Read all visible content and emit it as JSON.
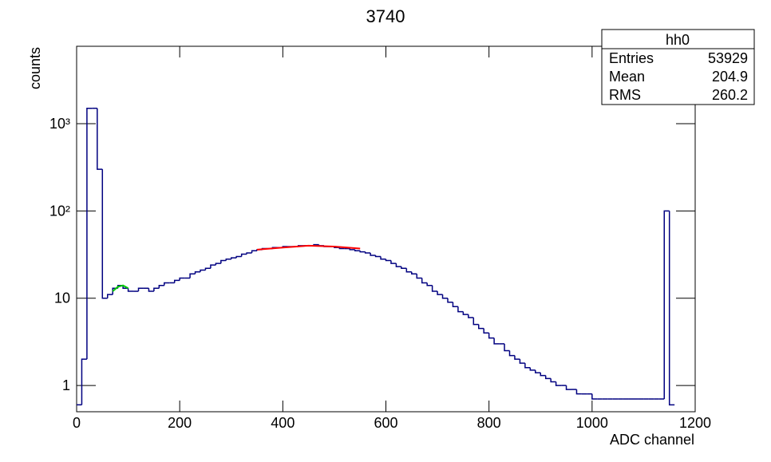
{
  "chart_data": {
    "type": "histogram",
    "title": "3740",
    "x_label": "ADC channel",
    "y_label": "counts",
    "log_y": true,
    "color": "#000080",
    "xlim": [
      0,
      1200
    ],
    "xticks": [
      0,
      200,
      400,
      600,
      800,
      1000,
      1200
    ],
    "ylim": [
      0.5,
      7700
    ],
    "yticks": [
      1,
      10,
      {
        "value": 100,
        "label": "10²"
      },
      {
        "value": 1000,
        "label": "10³"
      }
    ],
    "bins": [
      0,
      10,
      20,
      30,
      40,
      50,
      60,
      70,
      80,
      90,
      100,
      110,
      120,
      130,
      140,
      150,
      160,
      170,
      180,
      190,
      200,
      210,
      220,
      230,
      240,
      250,
      260,
      270,
      280,
      290,
      300,
      310,
      320,
      330,
      340,
      350,
      360,
      370,
      380,
      390,
      400,
      410,
      420,
      430,
      440,
      450,
      460,
      470,
      480,
      490,
      500,
      510,
      520,
      530,
      540,
      550,
      560,
      570,
      580,
      590,
      600,
      610,
      620,
      630,
      640,
      650,
      660,
      670,
      680,
      690,
      700,
      710,
      720,
      730,
      740,
      750,
      760,
      770,
      780,
      790,
      800,
      810,
      820,
      830,
      840,
      850,
      860,
      870,
      880,
      890,
      900,
      910,
      920,
      930,
      940,
      950,
      960,
      970,
      980,
      990,
      1000,
      1010,
      1020,
      1030,
      1040,
      1050,
      1060,
      1070,
      1080,
      1090,
      1100,
      1110,
      1120,
      1130,
      1140,
      1150,
      1160
    ],
    "values": [
      0.6,
      2,
      1500,
      1500,
      300,
      10,
      11,
      13,
      14,
      13,
      12,
      12,
      13,
      13,
      12,
      13,
      14,
      15,
      15,
      16,
      17,
      17,
      19,
      20,
      21,
      22,
      24,
      25,
      27,
      28,
      29,
      30,
      32,
      33,
      35,
      36,
      37,
      37,
      38,
      38,
      39,
      39,
      39,
      40,
      40,
      40,
      41,
      40,
      39,
      39,
      38,
      37,
      37,
      36,
      35,
      34,
      33,
      31,
      30,
      28,
      27,
      25,
      23,
      22,
      20,
      19,
      17,
      15,
      14,
      12,
      11,
      10,
      9,
      8,
      7,
      6.5,
      6,
      5,
      4.5,
      4,
      3.5,
      3,
      3,
      2.5,
      2.2,
      2,
      1.8,
      1.6,
      1.5,
      1.4,
      1.3,
      1.2,
      1.1,
      1,
      1,
      0.9,
      0.9,
      0.8,
      0.8,
      0.8,
      0.7,
      0.7,
      0.7,
      0.7,
      0.7,
      0.7,
      0.7,
      0.7,
      0.7,
      0.7,
      0.7,
      0.7,
      0.7,
      0.7,
      100,
      0.6
    ],
    "fits": [
      {
        "color": "#ff0000",
        "x": [
          350,
          400,
          450,
          500,
          550
        ],
        "values": [
          36,
          38,
          40,
          39,
          37
        ]
      },
      {
        "color": "#00cc00",
        "x": [
          70,
          80,
          90,
          100
        ],
        "values": [
          12,
          13.5,
          14,
          13
        ]
      }
    ],
    "stats_box": {
      "title": "hh0",
      "rows": [
        [
          "Entries",
          53929
        ],
        [
          "Mean",
          204.9
        ],
        [
          "RMS",
          260.2
        ]
      ]
    }
  }
}
